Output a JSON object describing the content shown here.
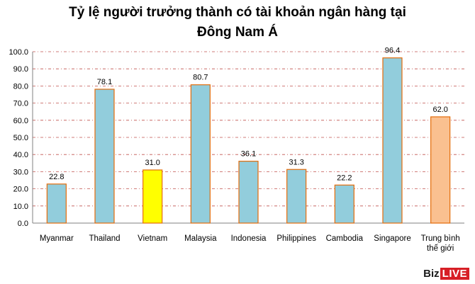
{
  "chart_data": {
    "type": "bar",
    "title_line1": "Tỷ lệ người trưởng thành có tài khoản ngân hàng tại",
    "title_line2": "Đông Nam Á",
    "categories": [
      [
        "Myanmar"
      ],
      [
        "Thailand"
      ],
      [
        "Vietnam"
      ],
      [
        "Malaysia"
      ],
      [
        "Indonesia"
      ],
      [
        "Philippines"
      ],
      [
        "Cambodia"
      ],
      [
        "Singapore"
      ],
      [
        "Trung bình",
        "thế giới"
      ]
    ],
    "values": [
      22.8,
      78.1,
      31.0,
      80.7,
      36.1,
      31.3,
      22.2,
      96.4,
      62.0
    ],
    "value_labels": [
      "22.8",
      "78.1",
      "31.0",
      "80.7",
      "36.1",
      "31.3",
      "22.2",
      "96.4",
      "62.0"
    ],
    "bar_colors": [
      "#92cddc",
      "#92cddc",
      "#ffff00",
      "#92cddc",
      "#92cddc",
      "#92cddc",
      "#92cddc",
      "#92cddc",
      "#fac090"
    ],
    "bar_border_color": "#e46c0a",
    "gridline_color": "#c0504d",
    "ylim": [
      0,
      100
    ],
    "yticks": [
      "0.0",
      "10.0",
      "20.0",
      "30.0",
      "40.0",
      "50.0",
      "60.0",
      "70.0",
      "80.0",
      "90.0",
      "100.0"
    ],
    "grid": true,
    "legend": "none"
  },
  "brand": {
    "part1": "Biz",
    "part2": "LIVE"
  }
}
